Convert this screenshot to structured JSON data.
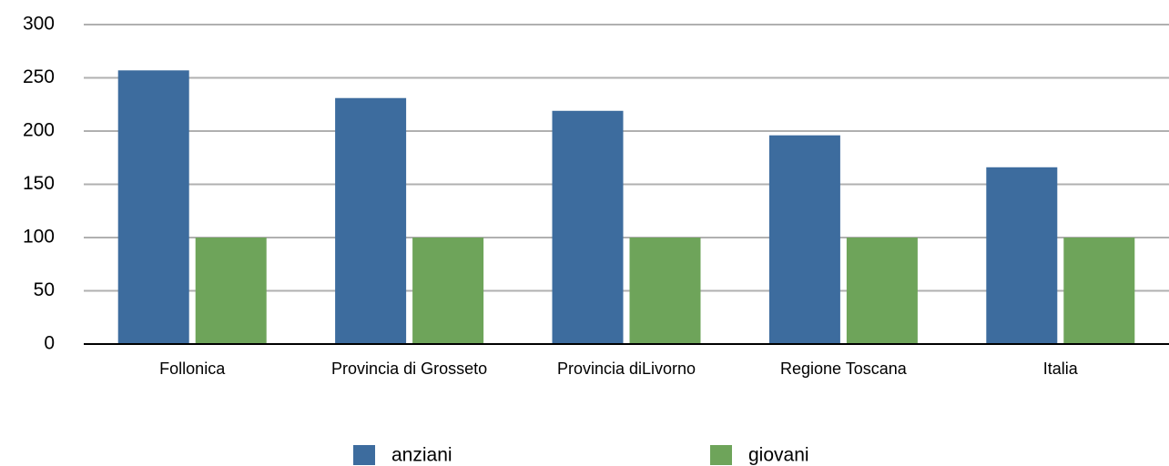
{
  "chart_data": {
    "type": "bar",
    "categories": [
      "Follonica",
      "Provincia di Grosseto",
      "Provincia diLivorno",
      "Regione Toscana",
      "Italia"
    ],
    "series": [
      {
        "name": "anziani",
        "color": "#3d6c9e",
        "values": [
          257,
          231,
          219,
          196,
          166
        ]
      },
      {
        "name": "giovani",
        "color": "#6ea45a",
        "values": [
          100,
          100,
          100,
          100,
          100
        ]
      }
    ],
    "ylim": [
      0,
      300
    ],
    "yticks": [
      0,
      50,
      100,
      150,
      200,
      250,
      300
    ],
    "grid": true,
    "legend": "bottom"
  }
}
